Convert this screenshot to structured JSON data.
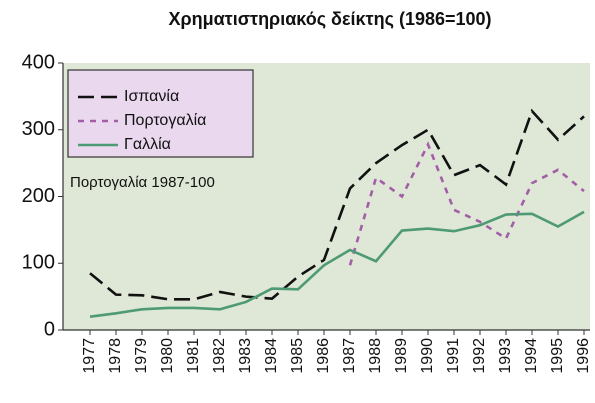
{
  "chart_data": {
    "type": "line",
    "title": "Χρηματιστηριακός δείκτης (1986=100)",
    "annotation": "Πορτογαλία 1987-100",
    "categories": [
      "1977",
      "1978",
      "1979",
      "1980",
      "1981",
      "1982",
      "1983",
      "1984",
      "1985",
      "1986",
      "1987",
      "1988",
      "1989",
      "1990",
      "1991",
      "1992",
      "1993",
      "1994",
      "1995",
      "1996"
    ],
    "series": [
      {
        "name": "Ισπανία",
        "color": "#111111",
        "line_style": "dashed",
        "values": [
          85,
          53,
          52,
          46,
          46,
          57,
          50,
          47,
          80,
          105,
          212,
          250,
          277,
          300,
          232,
          247,
          218,
          328,
          285,
          320
        ]
      },
      {
        "name": "Πορτογαλία",
        "color": "#a35ea8",
        "line_style": "dotted",
        "values": [
          null,
          null,
          null,
          null,
          null,
          null,
          null,
          null,
          null,
          null,
          97,
          228,
          200,
          278,
          180,
          162,
          137,
          220,
          240,
          208
        ]
      },
      {
        "name": "Γαλλία",
        "color": "#4e9a74",
        "line_style": "solid",
        "values": [
          20,
          25,
          31,
          33,
          33,
          31,
          42,
          62,
          61,
          97,
          120,
          103,
          149,
          152,
          148,
          157,
          173,
          174,
          155,
          177
        ]
      }
    ],
    "ylim": [
      0,
      400
    ],
    "yticks": [
      0,
      100,
      200,
      300,
      400
    ],
    "legend": "upper left"
  }
}
